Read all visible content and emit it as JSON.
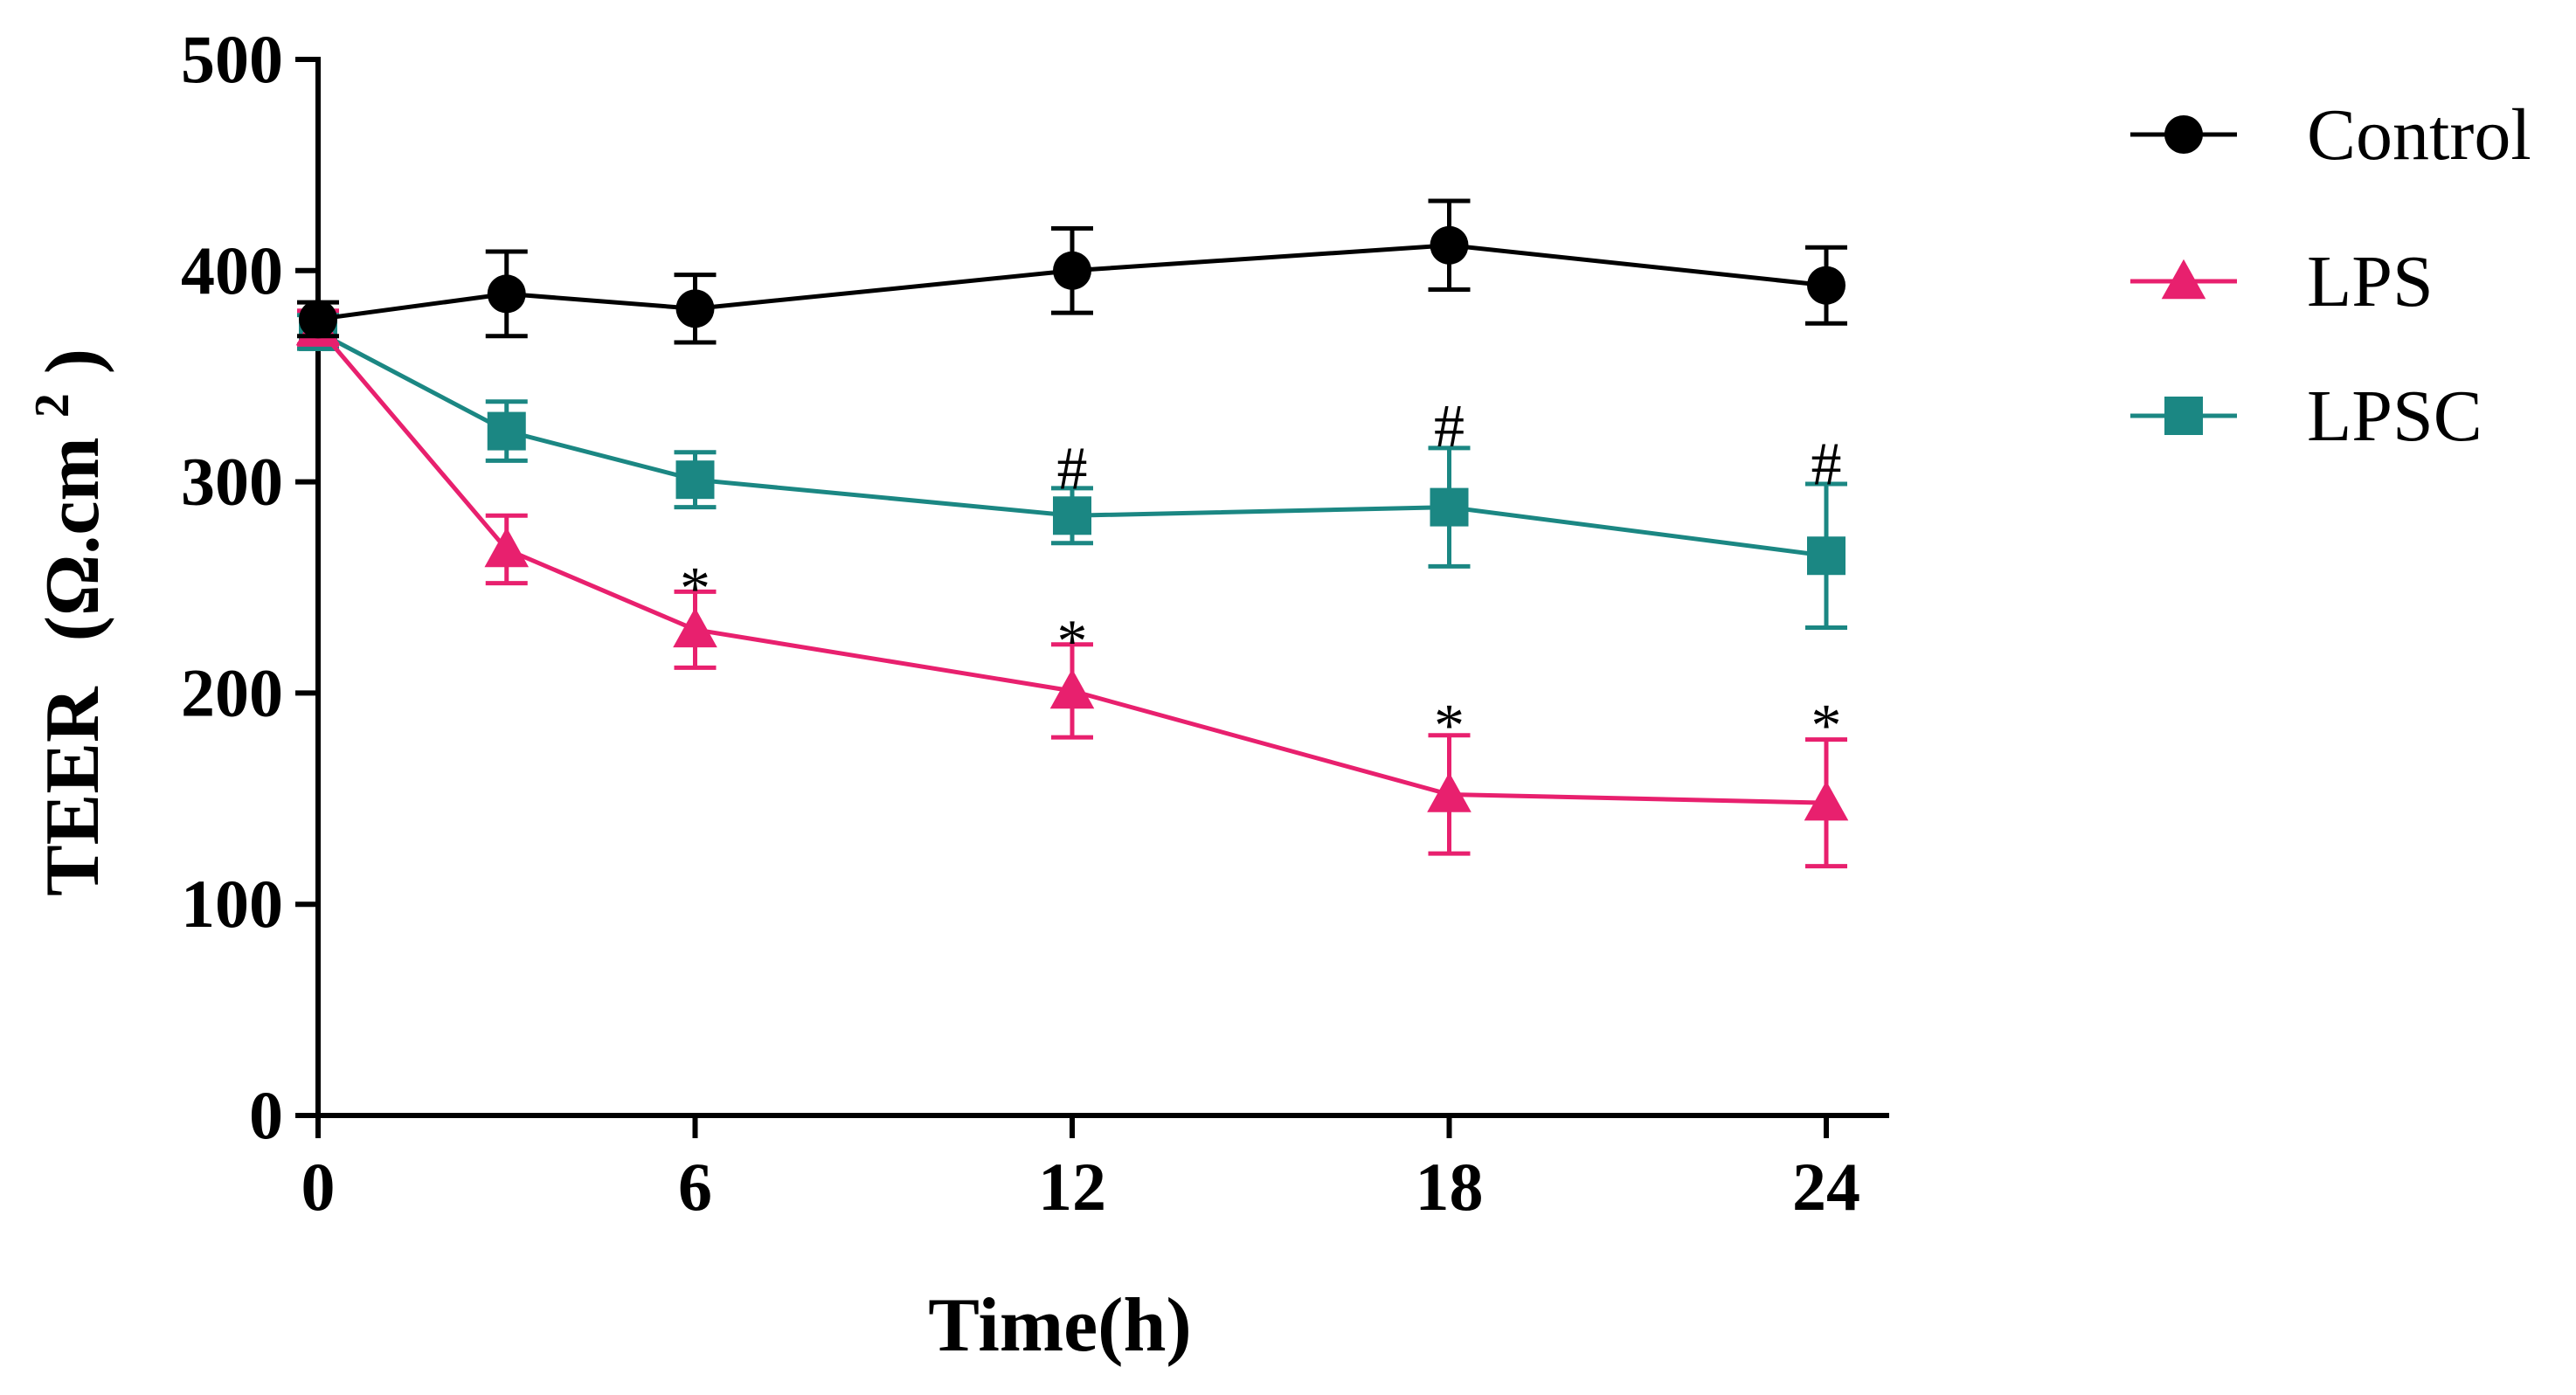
{
  "chart_data": {
    "type": "line",
    "xlabel": "Time(h)",
    "ylabel_main": "TEER",
    "ylabel_unit": "(Ω.cm",
    "ylabel_sup": "2",
    "ylabel_close": ")",
    "xlim": [
      0,
      25
    ],
    "ylim": [
      0,
      500
    ],
    "xticks": [
      0,
      6,
      12,
      18,
      24
    ],
    "xtick_labels": [
      "0",
      "6",
      "12",
      "18",
      "24"
    ],
    "yticks": [
      0,
      100,
      200,
      300,
      400,
      500
    ],
    "ytick_labels": [
      "0",
      "100",
      "200",
      "300",
      "400",
      "500"
    ],
    "grid": false,
    "legend_position": "top-right (outside plot)",
    "series": [
      {
        "name": "Control",
        "marker": "circle",
        "color": "#000000",
        "x": [
          0,
          3,
          6,
          12,
          18,
          24
        ],
        "y": [
          377,
          389,
          382,
          400,
          412,
          393
        ],
        "err": [
          8,
          20,
          16,
          20,
          21,
          18
        ]
      },
      {
        "name": "LPS",
        "marker": "triangle",
        "color": "#e8206e",
        "x": [
          0,
          3,
          6,
          12,
          18,
          24
        ],
        "y": [
          373,
          268,
          230,
          201,
          152,
          148
        ],
        "err": [
          8,
          16,
          18,
          22,
          28,
          30
        ]
      },
      {
        "name": "LPSC",
        "marker": "square",
        "color": "#1b8783",
        "x": [
          0,
          3,
          6,
          12,
          18,
          24
        ],
        "y": [
          371,
          324,
          301,
          284,
          288,
          265
        ],
        "err": [
          8,
          14,
          13,
          13,
          28,
          34
        ]
      }
    ],
    "annotations": [
      {
        "text": "*",
        "x": 6,
        "y": 255
      },
      {
        "text": "*",
        "x": 12,
        "y": 230
      },
      {
        "text": "*",
        "x": 18,
        "y": 190
      },
      {
        "text": "*",
        "x": 24,
        "y": 190
      },
      {
        "text": "#",
        "x": 12,
        "y": 305
      },
      {
        "text": "#",
        "x": 18,
        "y": 325
      },
      {
        "text": "#",
        "x": 24,
        "y": 307
      }
    ]
  }
}
